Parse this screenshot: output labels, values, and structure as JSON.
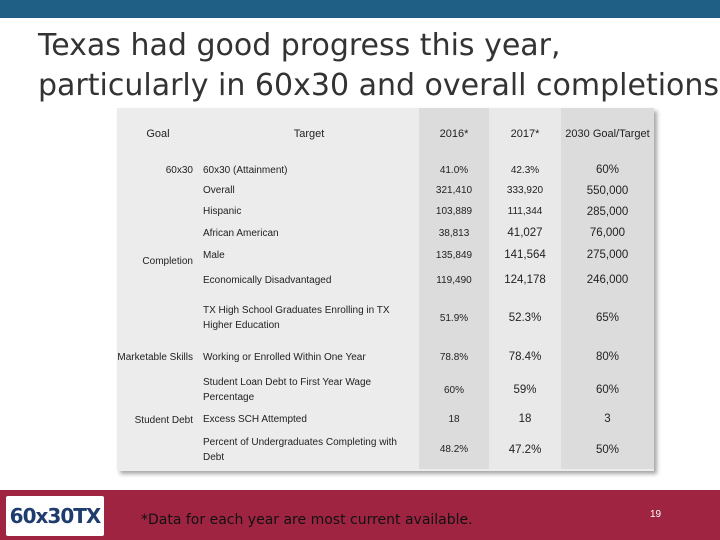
{
  "slide": {
    "title_line1": "Texas had good progress this year,",
    "title_line2": "particularly in 60x30 and overall completions.",
    "footnote": "*Data for each year are most current available.",
    "slide_number": "19",
    "logo_text": "60x30TX"
  },
  "table": {
    "headers": {
      "goal": "Goal",
      "target": "Target",
      "y2016": "2016*",
      "y2017": "2017*",
      "y2030": "2030 Goal/Target"
    },
    "goals": {
      "g60x30": "60x30",
      "completion": "Completion",
      "marketable": "Marketable Skills",
      "studentdebt": "Student Debt"
    },
    "rows": [
      {
        "target": "60x30 (Attainment)",
        "v2016": "41.0%",
        "v2017": "42.3%",
        "v2030": "60%"
      },
      {
        "target": "Overall",
        "v2016": "321,410",
        "v2017": "333,920",
        "v2030": "550,000"
      },
      {
        "target": "Hispanic",
        "v2016": "103,889",
        "v2017": "111,344",
        "v2030": "285,000"
      },
      {
        "target": "African American",
        "v2016": "38,813",
        "v2017": "41,027",
        "v2030": "76,000"
      },
      {
        "target": "Male",
        "v2016": "135,849",
        "v2017": "141,564",
        "v2030": "275,000"
      },
      {
        "target": "Economically Disadvantaged",
        "v2016": "119,490",
        "v2017": "124,178",
        "v2030": "246,000"
      },
      {
        "target": "TX High School Graduates Enrolling in TX Higher Education",
        "v2016": "51.9%",
        "v2017": "52.3%",
        "v2030": "65%"
      },
      {
        "target": "Working or Enrolled Within One Year",
        "v2016": "78.8%",
        "v2017": "78.4%",
        "v2030": "80%"
      },
      {
        "target": "Student Loan Debt to First Year Wage Percentage",
        "v2016": "60%",
        "v2017": "59%",
        "v2030": "60%"
      },
      {
        "target": "Excess SCH Attempted",
        "v2016": "18",
        "v2017": "18",
        "v2030": "3"
      },
      {
        "target": "Percent of Undergraduates Completing with Debt",
        "v2016": "48.2%",
        "v2017": "47.2%",
        "v2030": "50%"
      }
    ]
  },
  "colors": {
    "top_bar": "#1f5f86",
    "bottom_bar": "#9e2442",
    "table_bg": "#ececec"
  }
}
